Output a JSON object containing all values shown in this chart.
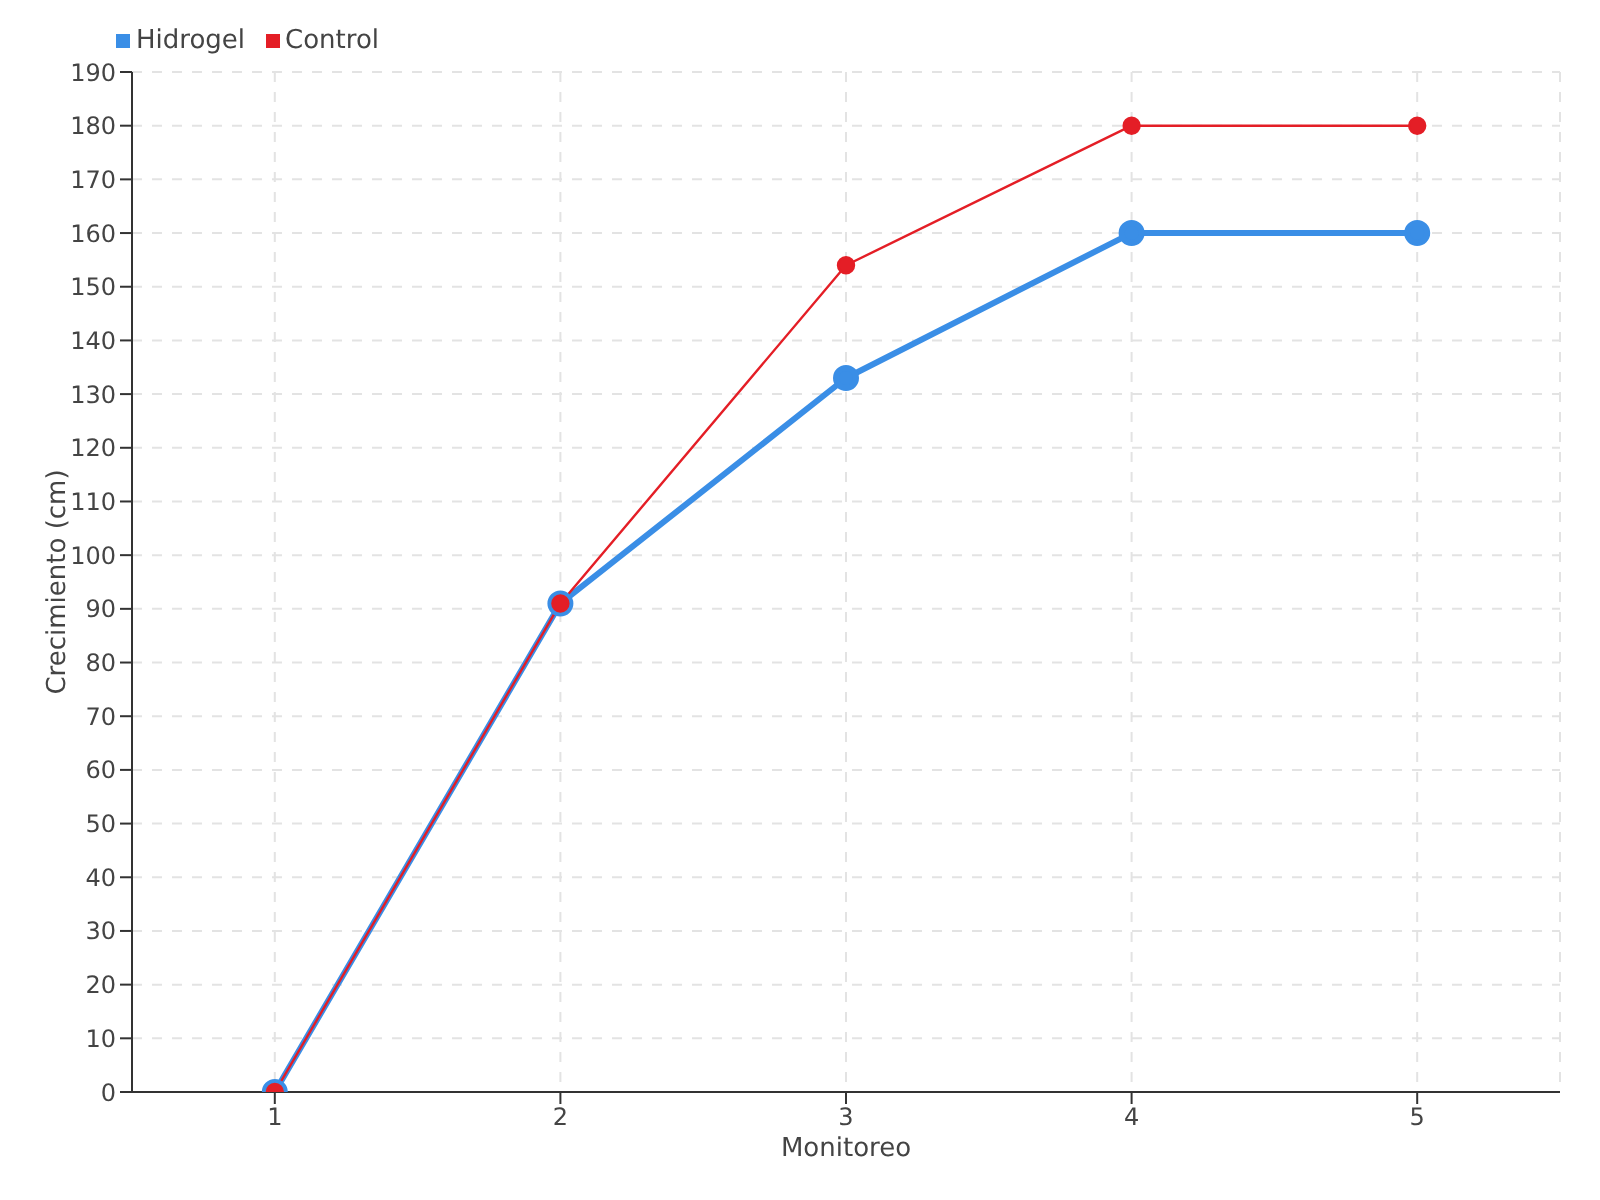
{
  "chart_data": {
    "type": "line",
    "xlabel": "Monitoreo",
    "ylabel": "Crecimiento (cm)",
    "categories": [
      "1",
      "2",
      "3",
      "4",
      "5"
    ],
    "series": [
      {
        "name": "Hidrogel",
        "color": "#3a8ee6",
        "values": [
          0,
          91,
          133,
          160,
          160
        ]
      },
      {
        "name": "Control",
        "color": "#e41e26",
        "values": [
          0,
          91,
          154,
          180,
          180
        ]
      }
    ],
    "ylim": [
      0,
      190
    ],
    "yticks": [
      0,
      10,
      20,
      30,
      40,
      50,
      60,
      70,
      80,
      90,
      100,
      110,
      120,
      130,
      140,
      150,
      160,
      170,
      180,
      190
    ],
    "grid": true,
    "legend": "top left",
    "marker": "circle",
    "line_style": "solid"
  }
}
